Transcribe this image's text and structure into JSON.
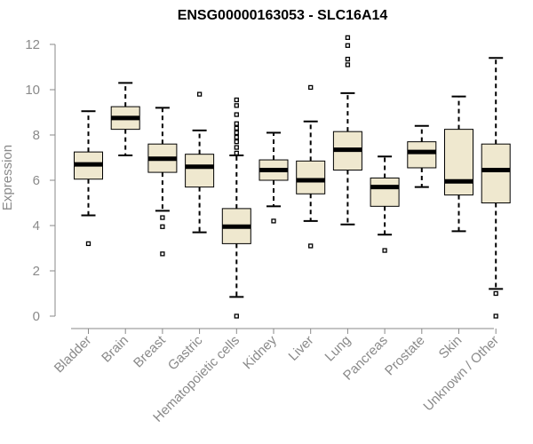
{
  "colors": {
    "box_fill": "#efe8cf",
    "box_stroke": "#000000",
    "axis": "#8a8a8a",
    "title": "#000000"
  },
  "chart_data": {
    "type": "boxplot",
    "title": "ENSG00000163053 - SLC16A14",
    "xlabel": "",
    "ylabel": "Expression",
    "ylim": [
      0,
      12
    ],
    "yticks": [
      0,
      2,
      4,
      6,
      8,
      10,
      12
    ],
    "grid": false,
    "legend": "none",
    "categories": [
      "Bladder",
      "Brain",
      "Breast",
      "Gastric",
      "Hematopoietic cells",
      "Kidney",
      "Liver",
      "Lung",
      "Pancreas",
      "Prostate",
      "Skin",
      "Unknown / Other"
    ],
    "boxes": [
      {
        "whisker_low": 4.45,
        "q1": 6.05,
        "median": 6.7,
        "q3": 7.25,
        "whisker_high": 9.05,
        "outliers": [
          3.2
        ]
      },
      {
        "whisker_low": 7.1,
        "q1": 8.25,
        "median": 8.75,
        "q3": 9.25,
        "whisker_high": 10.3,
        "outliers": []
      },
      {
        "whisker_low": 4.65,
        "q1": 6.35,
        "median": 6.95,
        "q3": 7.6,
        "whisker_high": 9.2,
        "outliers": [
          4.35,
          3.95,
          2.75
        ]
      },
      {
        "whisker_low": 3.7,
        "q1": 5.7,
        "median": 6.6,
        "q3": 7.15,
        "whisker_high": 8.2,
        "outliers": [
          9.8
        ]
      },
      {
        "whisker_low": 0.85,
        "q1": 3.2,
        "median": 3.95,
        "q3": 4.75,
        "whisker_high": 7.1,
        "outliers": [
          0.0,
          7.2,
          7.45,
          7.7,
          7.9,
          8.1,
          8.3,
          8.5,
          8.9,
          9.3,
          9.55
        ]
      },
      {
        "whisker_low": 4.85,
        "q1": 6.0,
        "median": 6.45,
        "q3": 6.9,
        "whisker_high": 8.1,
        "outliers": [
          4.2
        ]
      },
      {
        "whisker_low": 4.2,
        "q1": 5.4,
        "median": 6.0,
        "q3": 6.85,
        "whisker_high": 8.6,
        "outliers": [
          3.1,
          10.1
        ]
      },
      {
        "whisker_low": 4.05,
        "q1": 6.45,
        "median": 7.35,
        "q3": 8.15,
        "whisker_high": 9.85,
        "outliers": [
          11.1,
          11.35,
          11.95,
          12.3
        ]
      },
      {
        "whisker_low": 3.6,
        "q1": 4.85,
        "median": 5.7,
        "q3": 6.1,
        "whisker_high": 7.05,
        "outliers": [
          2.9
        ]
      },
      {
        "whisker_low": 5.7,
        "q1": 6.55,
        "median": 7.25,
        "q3": 7.7,
        "whisker_high": 8.4,
        "outliers": []
      },
      {
        "whisker_low": 3.75,
        "q1": 5.35,
        "median": 5.95,
        "q3": 8.25,
        "whisker_high": 9.7,
        "outliers": []
      },
      {
        "whisker_low": 1.2,
        "q1": 5.0,
        "median": 6.45,
        "q3": 7.6,
        "whisker_high": 11.4,
        "outliers": [
          0.0,
          1.0
        ]
      }
    ]
  }
}
